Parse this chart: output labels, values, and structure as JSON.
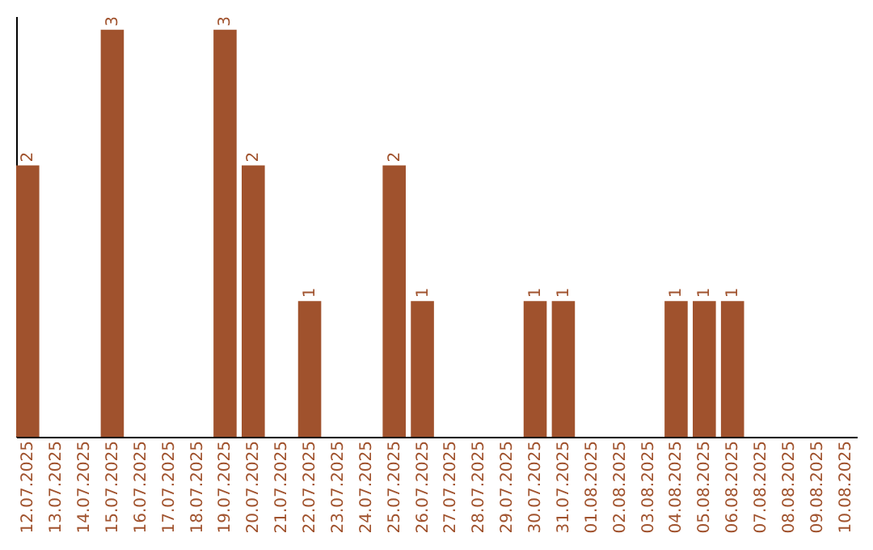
{
  "chart_data": {
    "type": "bar",
    "categories": [
      "12.07.2025",
      "13.07.2025",
      "14.07.2025",
      "15.07.2025",
      "16.07.2025",
      "17.07.2025",
      "18.07.2025",
      "19.07.2025",
      "20.07.2025",
      "21.07.2025",
      "22.07.2025",
      "23.07.2025",
      "24.07.2025",
      "25.07.2025",
      "26.07.2025",
      "27.07.2025",
      "28.07.2025",
      "29.07.2025",
      "30.07.2025",
      "31.07.2025",
      "01.08.2025",
      "02.08.2025",
      "03.08.2025",
      "04.08.2025",
      "05.08.2025",
      "06.08.2025",
      "07.08.2025",
      "08.08.2025",
      "09.08.2025",
      "10.08.2025"
    ],
    "values": [
      2,
      0,
      0,
      3,
      0,
      0,
      0,
      3,
      2,
      0,
      1,
      0,
      0,
      2,
      1,
      0,
      0,
      0,
      1,
      1,
      0,
      0,
      0,
      1,
      1,
      1,
      0,
      0,
      0,
      0
    ],
    "value_labels": [
      "2",
      null,
      null,
      "3",
      null,
      null,
      null,
      "3",
      "2",
      null,
      "1",
      null,
      null,
      "2",
      "1",
      null,
      null,
      null,
      "1",
      "1",
      null,
      null,
      null,
      "1",
      "1",
      "1",
      null,
      null,
      null,
      null
    ],
    "color": "#a0522d",
    "ylim": [
      0,
      3.1
    ],
    "tick_labels": "x",
    "grid": false
  }
}
